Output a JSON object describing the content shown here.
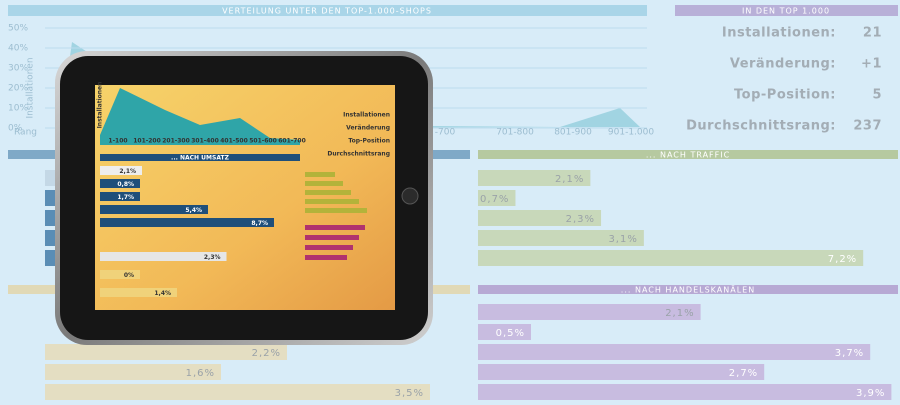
{
  "dashboard": {
    "distribution": {
      "title": "VERTEILUNG UNTER DEN TOP-1.000-SHOPS",
      "axis_label": "Installationen",
      "x_title": "Rang",
      "yticks": [
        "50%",
        "40%",
        "30%",
        "20%",
        "10%",
        "0%"
      ],
      "xticks": [
        "-700",
        "701-800",
        "801-900",
        "901-1.000"
      ]
    },
    "stats": {
      "title": "IN DEN TOP 1.000",
      "rows": [
        {
          "label": "Installationen:",
          "value": "21"
        },
        {
          "label": "Veränderung:",
          "value": "+1"
        },
        {
          "label": "Top-Position:",
          "value": "5"
        },
        {
          "label": "Durchschnittsrang:",
          "value": "237"
        }
      ]
    },
    "traffic": {
      "title": "... NACH TRAFFIC",
      "bars": [
        {
          "value": 2.1,
          "label": "2,1%"
        },
        {
          "value": 0.7,
          "label": "0,7%"
        },
        {
          "value": 2.3,
          "label": "2,3%"
        },
        {
          "value": 3.1,
          "label": "3,1%"
        },
        {
          "value": 7.2,
          "label": "7,2%"
        }
      ]
    },
    "sales": {
      "bars": [
        {
          "value": 2.2,
          "label": "2,2%"
        },
        {
          "value": 1.6,
          "label": "1,6%"
        },
        {
          "value": 3.5,
          "label": "3,5%"
        }
      ]
    },
    "channels": {
      "title": "... NACH HANDELSKANÄLEN",
      "bars": [
        {
          "value": 2.1,
          "label": "2,1%"
        },
        {
          "value": 0.5,
          "label": "0,5%"
        },
        {
          "value": 3.7,
          "label": "3,7%"
        },
        {
          "value": 2.7,
          "label": "2,7%"
        },
        {
          "value": 3.9,
          "label": "3,9%"
        }
      ]
    }
  },
  "tablet": {
    "chart": {
      "axis_label": "Installationen",
      "categories": [
        "1-100",
        "101-200",
        "201-300",
        "301-400",
        "401-500",
        "501-600",
        "601-700"
      ]
    },
    "revenue": {
      "title": "... NACH UMSATZ",
      "bars": [
        {
          "value": 2.1,
          "label": "2,1%"
        },
        {
          "value": 0.8,
          "label": "0,8%"
        },
        {
          "value": 1.7,
          "label": "1,7%"
        },
        {
          "value": 5.4,
          "label": "5,4%"
        },
        {
          "value": 8.7,
          "label": "8,7%"
        }
      ]
    },
    "shop_level": {
      "bars": [
        {
          "value": 2.3,
          "label": "2,3%"
        },
        {
          "value": 0,
          "label": "0%"
        },
        {
          "value": 1.4,
          "label": "1,4%"
        }
      ]
    },
    "stats_labels": [
      "Installationen",
      "Veränderung",
      "Top-Position",
      "Durchschnittsrang"
    ]
  }
}
